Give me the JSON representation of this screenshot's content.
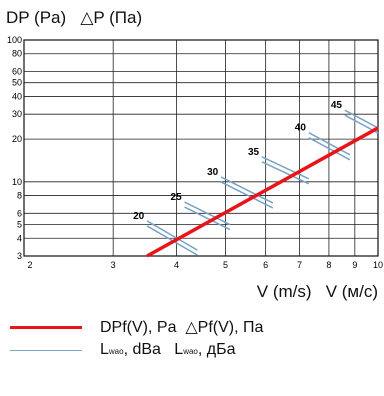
{
  "chart_data": {
    "type": "line",
    "ylabel": "DP (Pa)   △P (Па)",
    "xlabel": "V (m/s)   V (м/с)",
    "x_scale": "log",
    "y_scale": "log",
    "xlim": [
      2,
      10
    ],
    "ylim": [
      3,
      100
    ],
    "x_ticks": [
      2,
      3,
      4,
      5,
      6,
      7,
      8,
      9,
      10
    ],
    "y_ticks": [
      3,
      4,
      5,
      6,
      8,
      10,
      20,
      30,
      40,
      50,
      60,
      80,
      100
    ],
    "x_tick_labels": [
      "2",
      "3",
      "4",
      "5",
      "6",
      "7",
      "8",
      "9",
      "10"
    ],
    "y_tick_labels": [
      "3",
      "4",
      "5",
      "6",
      "8",
      "10",
      "20",
      "30",
      "40",
      "50",
      "60",
      "80",
      "100"
    ],
    "grid": true,
    "series": [
      {
        "name": "DPf(V), Pa  △Pf(V), Па",
        "color": "#e8141a",
        "x": [
          3.5,
          10
        ],
        "y": [
          3,
          24
        ]
      }
    ],
    "noise_lines": {
      "name": "Lwao, dBa  Lwao, дБа",
      "color": "#7aa3c4",
      "lines": [
        {
          "label": "20",
          "x": [
            3.5,
            4.4
          ],
          "y": [
            5.3,
            3.3
          ]
        },
        {
          "label": "25",
          "x": [
            4.15,
            5.1
          ],
          "y": [
            7.2,
            5.0
          ]
        },
        {
          "label": "30",
          "x": [
            4.9,
            6.2
          ],
          "y": [
            10.8,
            7.1
          ]
        },
        {
          "label": "35",
          "x": [
            5.9,
            7.3
          ],
          "y": [
            15.0,
            10.5
          ]
        },
        {
          "label": "40",
          "x": [
            7.3,
            8.8
          ],
          "y": [
            22.2,
            15.5
          ]
        },
        {
          "label": "45",
          "x": [
            8.6,
            10
          ],
          "y": [
            32.0,
            24.0
          ]
        }
      ]
    }
  },
  "legend": {
    "red_label": "DPf(V), Pa  △Pf(V), Па",
    "blue_label_1": "L",
    "blue_sub_1": "wao",
    "blue_label_1b": ", dBa   L",
    "blue_sub_2": "wao",
    "blue_label_2": ", дБа"
  }
}
